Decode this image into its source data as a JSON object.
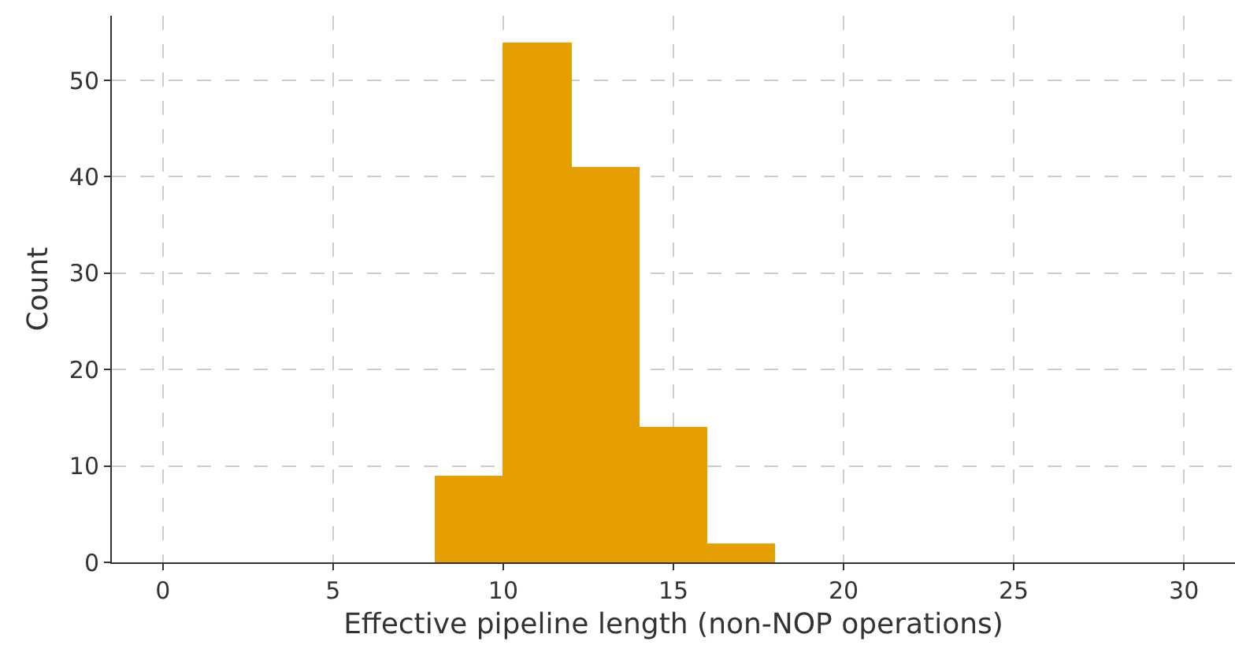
{
  "chart_data": {
    "type": "histogram",
    "xlabel": "Effective pipeline length (non-NOP operations)",
    "ylabel": "Count",
    "bins": [
      8,
      10,
      12,
      14,
      16,
      18
    ],
    "values": [
      9,
      54,
      41,
      14,
      2
    ],
    "color": "#e69f00",
    "xlim": [
      -1.5,
      31.5
    ],
    "xticks": [
      0,
      5,
      10,
      15,
      20,
      25,
      30
    ],
    "ylim": [
      0,
      56.7
    ],
    "yticks": [
      0,
      10,
      20,
      30,
      40,
      50
    ],
    "grid": true
  }
}
